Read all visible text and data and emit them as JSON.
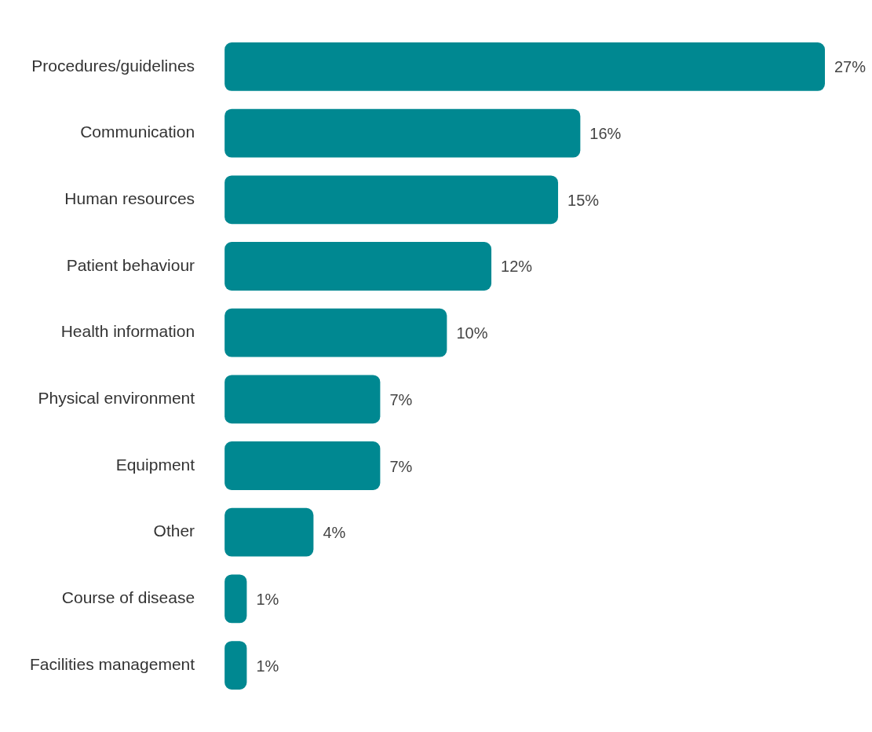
{
  "chart_data": {
    "type": "bar",
    "orientation": "horizontal",
    "categories": [
      "Procedures/guidelines",
      "Communication",
      "Human resources",
      "Patient behaviour",
      "Health information",
      "Physical environment",
      "Equipment",
      "Other",
      "Course of disease",
      "Facilities management"
    ],
    "values": [
      27,
      16,
      15,
      12,
      10,
      7,
      7,
      4,
      1,
      1
    ],
    "value_labels": [
      "27%",
      "16%",
      "15%",
      "12%",
      "10%",
      "7%",
      "7%",
      "4%",
      "1%",
      "1%"
    ],
    "color": "#008891"
  }
}
